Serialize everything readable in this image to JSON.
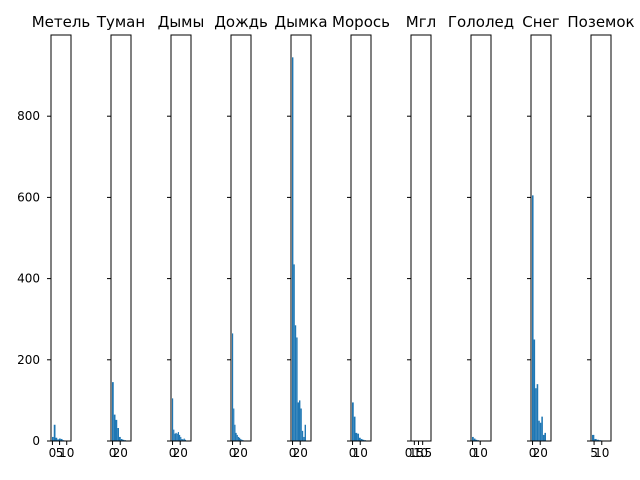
{
  "chart_data": {
    "type": "bar",
    "bar_color": "#1f77b4",
    "ylim": [
      0,
      1000
    ],
    "yticks": [
      0,
      200,
      400,
      600,
      800
    ],
    "grid": false,
    "panels": [
      {
        "title": "Метель",
        "xticks": [
          "0",
          "5",
          "10"
        ],
        "xtick_values": [
          0,
          5,
          10
        ],
        "xlim": [
          -1,
          13
        ],
        "values": [
          10,
          40,
          8,
          4,
          6,
          5,
          2,
          1
        ]
      },
      {
        "title": "Туман",
        "xticks": [
          "0",
          "20"
        ],
        "xtick_values": [
          0,
          20
        ],
        "xlim": [
          -4,
          48
        ],
        "values": [
          145,
          65,
          52,
          32,
          10,
          5,
          3,
          2
        ]
      },
      {
        "title": "Дымы",
        "xticks": [
          "0",
          "20"
        ],
        "xtick_values": [
          0,
          20
        ],
        "xlim": [
          -4,
          48
        ],
        "values": [
          105,
          28,
          18,
          20,
          18,
          22,
          15,
          10,
          5,
          4,
          6,
          3
        ]
      },
      {
        "title": "Дождь",
        "xticks": [
          "0",
          "20"
        ],
        "xtick_values": [
          0,
          20
        ],
        "xlim": [
          -4,
          48
        ],
        "values": [
          265,
          80,
          40,
          20,
          15,
          10,
          8,
          5,
          3,
          2,
          1,
          1
        ]
      },
      {
        "title": "Дымка",
        "xticks": [
          "0",
          "20"
        ],
        "xtick_values": [
          0,
          20
        ],
        "xlim": [
          -4,
          48
        ],
        "values": [
          945,
          435,
          285,
          255,
          95,
          100,
          80,
          25,
          10,
          40
        ]
      },
      {
        "title": "Морось",
        "xticks": [
          "0",
          "10"
        ],
        "xtick_values": [
          0,
          10
        ],
        "xlim": [
          -2,
          24
        ],
        "values": [
          95,
          60,
          20,
          18,
          8,
          5,
          3,
          2
        ]
      },
      {
        "title": "Мгл",
        "xticks": [
          "0.5",
          "1.0",
          "1.5"
        ],
        "xtick_values": [
          0.5,
          1.0,
          1.5
        ],
        "xlim": [
          0.1,
          2.5
        ],
        "values": []
      },
      {
        "title": "Гололед",
        "xticks": [
          "0",
          "10"
        ],
        "xtick_values": [
          0,
          10
        ],
        "xlim": [
          -2,
          24
        ],
        "values": [
          10,
          6,
          3,
          2,
          1,
          1,
          0,
          1
        ]
      },
      {
        "title": "Снег",
        "xticks": [
          "0",
          "20"
        ],
        "xtick_values": [
          0,
          20
        ],
        "xlim": [
          -4,
          48
        ],
        "values": [
          605,
          250,
          130,
          140,
          50,
          45,
          60,
          15,
          20
        ]
      },
      {
        "title": "Поземок",
        "xticks": [
          "5",
          "10"
        ],
        "xtick_values": [
          5,
          10
        ],
        "xlim": [
          3,
          16
        ],
        "values": [
          15,
          5,
          3,
          2,
          1,
          1
        ]
      }
    ]
  }
}
